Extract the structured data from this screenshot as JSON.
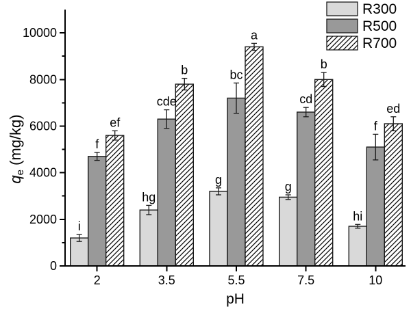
{
  "chart_data": {
    "type": "bar",
    "xlabel": "pH",
    "ylabel": "qe (mg/kg)",
    "ylabel_parts": {
      "symbol": "q",
      "subscript": "e",
      "units": "(mg/kg)"
    },
    "categories": [
      "2",
      "3.5",
      "5.5",
      "7.5",
      "10"
    ],
    "series": [
      {
        "name": "R300",
        "fill": "#d9d9d9",
        "hatch": false,
        "values": [
          1200,
          2400,
          3200,
          2950,
          1700
        ],
        "errors": [
          150,
          200,
          150,
          100,
          80
        ],
        "labels": [
          "i",
          "hg",
          "g",
          "g",
          "hi"
        ]
      },
      {
        "name": "R500",
        "fill": "#999999",
        "hatch": false,
        "values": [
          4700,
          6300,
          7200,
          6600,
          5100
        ],
        "errors": [
          170,
          400,
          650,
          200,
          550
        ],
        "labels": [
          "f",
          "cde",
          "bc",
          "cd",
          "f"
        ]
      },
      {
        "name": "R700",
        "fill": "#ffffff",
        "hatch": true,
        "values": [
          5600,
          7800,
          9400,
          8000,
          6100
        ],
        "errors": [
          200,
          250,
          150,
          300,
          300
        ],
        "labels": [
          "ef",
          "b",
          "a",
          "b",
          "ed"
        ]
      }
    ],
    "yticks": {
      "major_values": [
        0,
        2000,
        4000,
        6000,
        8000,
        10000
      ],
      "major_labels": [
        "0",
        "2000",
        "4000",
        "6000",
        "8000",
        "10000"
      ],
      "minor_values": [
        1000,
        3000,
        5000,
        7000,
        9000
      ]
    },
    "ylim": [
      0,
      11000
    ],
    "grid": false,
    "legend_position": "top-right",
    "colors": {
      "bar_edge": "#1a1a1a",
      "error_bar": "#1a1a1a",
      "axis": "#000000",
      "hatch_line": "#000000",
      "text": "#000000",
      "background": "#ffffff"
    }
  }
}
